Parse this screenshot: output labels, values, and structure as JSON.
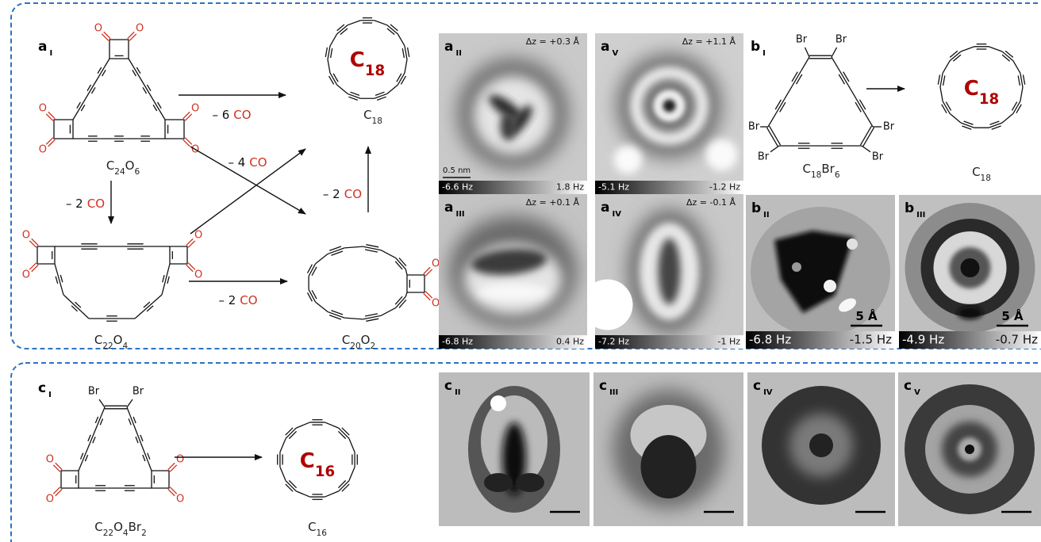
{
  "panel_labels": [
    {
      "letter": "a",
      "index": "I"
    },
    {
      "letter": "a",
      "index": "II"
    },
    {
      "letter": "a",
      "index": "V"
    },
    {
      "letter": "a",
      "index": "III"
    },
    {
      "letter": "a",
      "index": "IV"
    },
    {
      "letter": "b",
      "index": "I"
    },
    {
      "letter": "b",
      "index": "II"
    },
    {
      "letter": "b",
      "index": "III"
    },
    {
      "letter": "c",
      "index": "I"
    },
    {
      "letter": "c",
      "index": "II"
    },
    {
      "letter": "c",
      "index": "III"
    },
    {
      "letter": "c",
      "index": "IV"
    },
    {
      "letter": "c",
      "index": "V"
    }
  ],
  "molecules": [
    {
      "formula": [
        "C",
        "24",
        "O",
        "6"
      ],
      "atoms": [
        "O",
        "O",
        "O",
        "O",
        "O",
        "O"
      ]
    },
    {
      "formula": [
        "C",
        "22",
        "O",
        "4"
      ],
      "atoms": [
        "O",
        "O",
        "O",
        "O"
      ]
    },
    {
      "formula": [
        "C",
        "18"
      ]
    },
    {
      "formula": [
        "C",
        "20",
        "O",
        "2"
      ],
      "atoms": [
        "O",
        "O"
      ]
    },
    {
      "formula": [
        "C",
        "18",
        "Br",
        "6"
      ],
      "atoms": [
        "Br",
        "Br",
        "Br",
        "Br",
        "Br",
        "Br"
      ]
    },
    {
      "formula": [
        "C",
        "18"
      ]
    },
    {
      "formula": [
        "C",
        "22",
        "O",
        "4",
        "Br",
        "2"
      ],
      "atoms": [
        "Br",
        "Br",
        "O",
        "O",
        "O",
        "O"
      ]
    },
    {
      "formula": [
        "C",
        "16"
      ]
    }
  ],
  "ring_labels": [
    [
      "C",
      "18"
    ],
    [
      "C",
      "18"
    ],
    [
      "C",
      "16"
    ]
  ],
  "reactions": [
    {
      "amount": "– 6",
      "species": "CO"
    },
    {
      "amount": "– 4",
      "species": "CO"
    },
    {
      "amount": "– 2",
      "species": "CO"
    },
    {
      "amount": "– 2",
      "species": "CO"
    },
    {
      "amount": "– 2",
      "species": "CO"
    }
  ],
  "stm_images": [
    {
      "dz": "Δz = +0.3 Å",
      "scale": "0.5 nm",
      "colorbar": [
        "-6.6 Hz",
        "1.8 Hz"
      ]
    },
    {
      "dz": "Δz = +1.1 Å",
      "colorbar": [
        "-5.1 Hz",
        "-1.2 Hz"
      ]
    },
    {
      "dz": "Δz = +0.1 Å",
      "colorbar": [
        "-6.8 Hz",
        "0.4 Hz"
      ]
    },
    {
      "dz": "Δz = -0.1 Å",
      "colorbar": [
        "-7.2 Hz",
        "-1 Hz"
      ]
    },
    {
      "scale": "5 Å",
      "colorbar": [
        "-6.8 Hz",
        "-1.5 Hz"
      ]
    },
    {
      "scale": "5 Å",
      "colorbar": [
        "-4.9 Hz",
        "-0.7 Hz"
      ]
    }
  ]
}
